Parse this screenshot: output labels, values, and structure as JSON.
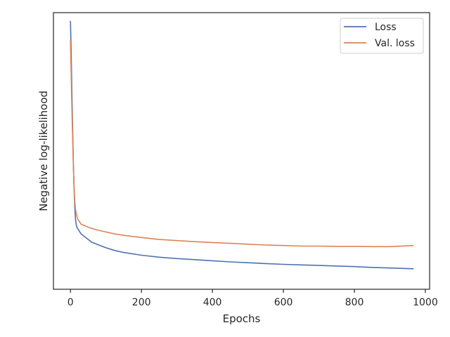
{
  "chart_data": {
    "type": "line",
    "title": "",
    "xlabel": "Epochs",
    "ylabel": "Negative log-likelihood",
    "xlim": [
      -48,
      1012
    ],
    "ylim": [
      0.0,
      1.0
    ],
    "xticks": [
      0,
      200,
      400,
      600,
      800,
      1000
    ],
    "xtick_labels": [
      "0",
      "200",
      "400",
      "600",
      "800",
      "1000"
    ],
    "yticks_visible": false,
    "grid": false,
    "legend": {
      "position": "top-right",
      "entries": [
        "Loss",
        "Val. loss"
      ]
    },
    "series": [
      {
        "name": "Loss",
        "color": "#4c72b0",
        "x": [
          0,
          2,
          4,
          6,
          8,
          10,
          12,
          14,
          16,
          18,
          20,
          25,
          30,
          40,
          50,
          60,
          80,
          100,
          125,
          150,
          200,
          250,
          300,
          350,
          400,
          450,
          500,
          550,
          600,
          650,
          700,
          750,
          800,
          850,
          900,
          967
        ],
        "y": [
          0.97,
          0.86,
          0.72,
          0.58,
          0.46,
          0.37,
          0.3,
          0.255,
          0.235,
          0.225,
          0.22,
          0.21,
          0.2,
          0.19,
          0.18,
          0.17,
          0.16,
          0.15,
          0.14,
          0.133,
          0.123,
          0.116,
          0.111,
          0.107,
          0.103,
          0.099,
          0.096,
          0.093,
          0.09,
          0.088,
          0.086,
          0.084,
          0.082,
          0.079,
          0.077,
          0.074
        ]
      },
      {
        "name": "Val. loss",
        "color": "#dd8452",
        "x": [
          0,
          2,
          4,
          6,
          8,
          10,
          12,
          14,
          16,
          18,
          20,
          25,
          30,
          40,
          50,
          60,
          80,
          100,
          125,
          150,
          200,
          250,
          300,
          350,
          400,
          450,
          500,
          550,
          600,
          650,
          700,
          750,
          800,
          850,
          900,
          967
        ],
        "y": [
          0.9,
          0.78,
          0.66,
          0.55,
          0.45,
          0.37,
          0.32,
          0.29,
          0.275,
          0.265,
          0.255,
          0.245,
          0.235,
          0.23,
          0.224,
          0.22,
          0.213,
          0.207,
          0.2,
          0.195,
          0.187,
          0.18,
          0.176,
          0.172,
          0.169,
          0.166,
          0.163,
          0.16,
          0.158,
          0.156,
          0.156,
          0.155,
          0.155,
          0.154,
          0.154,
          0.158
        ]
      }
    ]
  }
}
